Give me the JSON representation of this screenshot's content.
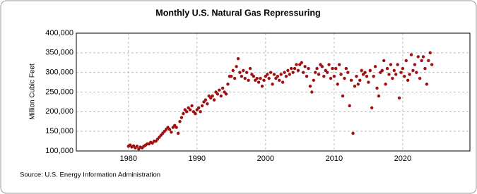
{
  "chart_data": {
    "type": "scatter",
    "title": "Monthly U.S. Natural Gas Repressuring",
    "y_label": "Million Cubic Feet",
    "source": "Source: U.S. Energy Information Administration",
    "color": "#a01010",
    "grid": true,
    "x": [
      1980,
      1980.25,
      1980.5,
      1980.75,
      1981,
      1981.25,
      1981.5,
      1981.75,
      1982,
      1982.25,
      1982.5,
      1982.75,
      1983,
      1983.25,
      1983.5,
      1983.75,
      1984,
      1984.25,
      1984.5,
      1984.75,
      1985,
      1985.25,
      1985.5,
      1985.75,
      1986,
      1986.25,
      1986.5,
      1986.75,
      1987,
      1987.25,
      1987.5,
      1987.75,
      1988,
      1988.25,
      1988.5,
      1988.75,
      1989,
      1989.25,
      1989.5,
      1989.75,
      1990,
      1990.25,
      1990.5,
      1990.75,
      1991,
      1991.25,
      1991.5,
      1991.75,
      1992,
      1992.25,
      1992.5,
      1992.75,
      1993,
      1993.25,
      1993.5,
      1993.75,
      1994,
      1994.25,
      1994.5,
      1994.75,
      1995,
      1995.25,
      1995.5,
      1995.75,
      1996,
      1996.25,
      1996.5,
      1996.75,
      1997,
      1997.25,
      1997.5,
      1997.75,
      1998,
      1998.25,
      1998.5,
      1998.75,
      1999,
      1999.25,
      1999.5,
      1999.75,
      2000,
      2000.25,
      2000.5,
      2000.75,
      2001,
      2001.25,
      2001.5,
      2001.75,
      2002,
      2002.25,
      2002.5,
      2002.75,
      2003,
      2003.25,
      2003.5,
      2003.75,
      2004,
      2004.25,
      2004.5,
      2004.75,
      2005,
      2005.25,
      2005.5,
      2005.75,
      2006,
      2006.25,
      2006.5,
      2006.75,
      2007,
      2007.25,
      2007.5,
      2007.75,
      2008,
      2008.25,
      2008.5,
      2008.75,
      2009,
      2009.25,
      2009.5,
      2009.75,
      2010,
      2010.25,
      2010.5,
      2010.75,
      2011,
      2011.25,
      2011.5,
      2011.75,
      2012,
      2012.25,
      2012.5,
      2012.75,
      2013,
      2013.25,
      2013.5,
      2013.75,
      2014,
      2014.25,
      2014.5,
      2014.75,
      2015,
      2015.25,
      2015.5,
      2015.75,
      2016,
      2016.25,
      2016.5,
      2016.75,
      2017,
      2017.25,
      2017.5,
      2017.75,
      2018,
      2018.25,
      2018.5,
      2018.75,
      2019,
      2019.25,
      2019.5,
      2019.75,
      2020,
      2020.25,
      2020.5,
      2020.75,
      2021,
      2021.25,
      2021.5,
      2021.75,
      2022,
      2022.25,
      2022.5,
      2022.75,
      2023,
      2023.25,
      2023.5,
      2023.75,
      2024,
      2024.25
    ],
    "values": [
      112000,
      115000,
      110000,
      113000,
      108000,
      112000,
      105000,
      110000,
      108000,
      112000,
      115000,
      118000,
      118000,
      122000,
      120000,
      125000,
      125000,
      130000,
      135000,
      140000,
      145000,
      150000,
      155000,
      160000,
      155000,
      148000,
      160000,
      165000,
      160000,
      145000,
      175000,
      185000,
      195000,
      205000,
      200000,
      210000,
      205000,
      215000,
      200000,
      195000,
      205000,
      210000,
      200000,
      215000,
      225000,
      230000,
      220000,
      240000,
      235000,
      240000,
      230000,
      250000,
      245000,
      255000,
      240000,
      260000,
      250000,
      245000,
      270000,
      290000,
      290000,
      305000,
      285000,
      315000,
      335000,
      300000,
      290000,
      305000,
      285000,
      300000,
      280000,
      310000,
      295000,
      290000,
      280000,
      285000,
      275000,
      285000,
      265000,
      280000,
      290000,
      295000,
      285000,
      300000,
      270000,
      295000,
      285000,
      290000,
      280000,
      295000,
      275000,
      300000,
      290000,
      305000,
      295000,
      310000,
      300000,
      310000,
      320000,
      305000,
      320000,
      325000,
      300000,
      315000,
      290000,
      310000,
      265000,
      250000,
      280000,
      300000,
      310000,
      295000,
      320000,
      315000,
      290000,
      305000,
      300000,
      320000,
      285000,
      310000,
      290000,
      310000,
      270000,
      320000,
      295000,
      240000,
      285000,
      310000,
      300000,
      215000,
      280000,
      145000,
      265000,
      290000,
      270000,
      280000,
      305000,
      295000,
      300000,
      290000,
      275000,
      305000,
      210000,
      290000,
      315000,
      260000,
      240000,
      300000,
      305000,
      330000,
      270000,
      310000,
      295000,
      320000,
      285000,
      305000,
      295000,
      320000,
      235000,
      300000,
      310000,
      290000,
      330000,
      280000,
      295000,
      345000,
      305000,
      320000,
      300000,
      340000,
      285000,
      330000,
      340000,
      310000,
      270000,
      330000,
      350000,
      320000
    ],
    "xlim": [
      1972.4,
      2029.8
    ],
    "xticks": [
      1980,
      1990,
      2000,
      2010,
      2020
    ],
    "ylim": [
      100000,
      400000
    ],
    "yticks": [
      {
        "value": 100000,
        "label": "100,000"
      },
      {
        "value": 150000,
        "label": "150,000"
      },
      {
        "value": 200000,
        "label": "200,000"
      },
      {
        "value": 250000,
        "label": "250,000"
      },
      {
        "value": 300000,
        "label": "300,000"
      },
      {
        "value": 350000,
        "label": "350,000"
      },
      {
        "value": 400000,
        "label": "400,000"
      }
    ]
  }
}
